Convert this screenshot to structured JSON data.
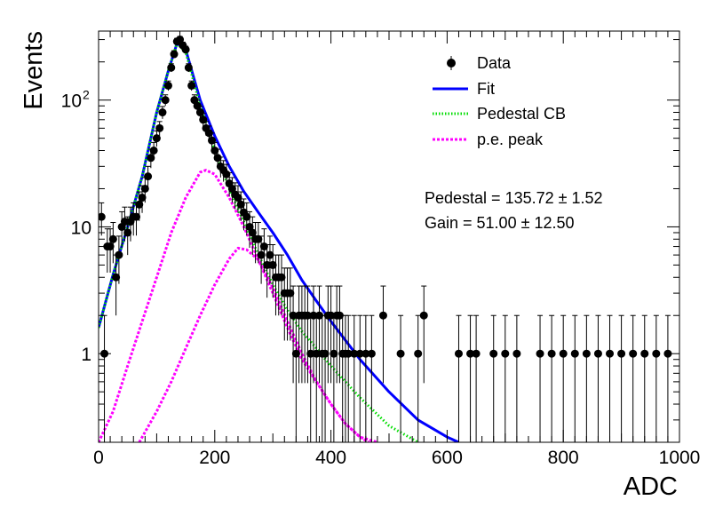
{
  "chart_data": {
    "type": "scatter",
    "xlabel": "ADC",
    "ylabel": "Events",
    "xlim": [
      0,
      1000
    ],
    "ylim": [
      0.2,
      350
    ],
    "yscale": "log",
    "x_ticks": [
      "0",
      "200",
      "400",
      "600",
      "800",
      "1000"
    ],
    "y_ticks": [
      {
        "value": 1,
        "label": "1"
      },
      {
        "value": 10,
        "label": "10"
      },
      {
        "value": 100,
        "label": "10",
        "exp": "2"
      }
    ],
    "legend": {
      "placement": "top-right",
      "entries": [
        {
          "label": "Data",
          "style": "marker",
          "color": "#000000"
        },
        {
          "label": "Fit",
          "style": "solid",
          "color": "#0000ff"
        },
        {
          "label": "Pedestal CB",
          "style": "dotted",
          "color": "#00dd00"
        },
        {
          "label": "p.e. peak",
          "style": "dashed",
          "color": "#ff00ff"
        }
      ]
    },
    "annotations": [
      {
        "text": "Pedestal = 135.72 ± 1.52"
      },
      {
        "text": "Gain = 51.00 ± 12.50"
      }
    ],
    "series": [
      {
        "name": "Data",
        "kind": "points",
        "color": "#000000",
        "x": [
          5,
          10,
          15,
          20,
          25,
          30,
          35,
          40,
          45,
          50,
          55,
          60,
          65,
          70,
          75,
          80,
          85,
          90,
          95,
          100,
          105,
          110,
          115,
          120,
          125,
          130,
          135,
          140,
          145,
          150,
          155,
          160,
          165,
          170,
          175,
          180,
          185,
          190,
          195,
          200,
          205,
          210,
          215,
          220,
          225,
          230,
          235,
          240,
          245,
          250,
          255,
          260,
          265,
          270,
          275,
          280,
          285,
          290,
          295,
          300,
          305,
          310,
          315,
          320,
          325,
          330,
          335,
          340,
          345,
          350,
          355,
          360,
          365,
          370,
          375,
          380,
          385,
          390,
          395,
          400,
          405,
          410,
          415,
          420,
          425,
          430,
          440,
          450,
          460,
          470,
          490,
          520,
          550,
          560,
          620,
          640,
          650,
          680,
          700,
          720,
          760,
          780,
          800,
          820,
          840,
          860,
          880,
          900,
          920,
          940,
          960,
          980
        ],
        "y": [
          12,
          1,
          7,
          7,
          8,
          4,
          6,
          10,
          11,
          9,
          11,
          12,
          12,
          15,
          17,
          20,
          25,
          35,
          40,
          50,
          60,
          80,
          100,
          130,
          180,
          230,
          290,
          300,
          270,
          250,
          180,
          130,
          100,
          90,
          80,
          70,
          60,
          55,
          48,
          40,
          35,
          30,
          28,
          26,
          22,
          20,
          18,
          17,
          15,
          13,
          12,
          10,
          9,
          8,
          8,
          6,
          7,
          5,
          6,
          5,
          4,
          4,
          4,
          3,
          3,
          3,
          2,
          1,
          2,
          2,
          2,
          2,
          1,
          2,
          1,
          2,
          1,
          1,
          2,
          2,
          1,
          2,
          2,
          1,
          1,
          1,
          1,
          1,
          1,
          1,
          2,
          1,
          1,
          2,
          1,
          1,
          1,
          1,
          1,
          1,
          1,
          1,
          1,
          1,
          1,
          1,
          1,
          1,
          1,
          1,
          1,
          1
        ]
      },
      {
        "name": "Fit",
        "kind": "line",
        "color": "#0000ff",
        "x": [
          0,
          25,
          50,
          75,
          100,
          120,
          135,
          150,
          175,
          200,
          225,
          250,
          275,
          300,
          325,
          350,
          375,
          400,
          450,
          500,
          550,
          600,
          620
        ],
        "y": [
          1.6,
          4.2,
          10,
          25,
          80,
          170,
          280,
          250,
          100,
          52,
          30,
          19,
          13,
          9,
          6,
          3.8,
          2.6,
          1.8,
          0.9,
          0.5,
          0.3,
          0.22,
          0.2
        ]
      },
      {
        "name": "Pedestal CB",
        "kind": "line",
        "color": "#00dd00",
        "x": [
          0,
          25,
          50,
          75,
          100,
          120,
          135,
          150,
          175,
          200,
          225,
          250,
          275,
          300,
          325,
          350,
          375,
          400,
          450,
          500,
          550
        ],
        "y": [
          1.6,
          4.2,
          10,
          25,
          80,
          170,
          280,
          240,
          90,
          40,
          20,
          11,
          6,
          3.5,
          2.2,
          1.5,
          1.1,
          0.8,
          0.45,
          0.27,
          0.2
        ]
      },
      {
        "name": "p.e. peak",
        "kind": "line",
        "color": "#ff00ff",
        "x": [
          0,
          25,
          50,
          75,
          100,
          125,
          150,
          175,
          185,
          200,
          225,
          250,
          275,
          300,
          325,
          350,
          375,
          400,
          425,
          450,
          480
        ],
        "y": [
          0.2,
          0.35,
          0.8,
          1.8,
          4,
          9,
          17,
          27,
          28,
          26,
          17,
          10,
          5.5,
          3,
          1.6,
          0.9,
          0.6,
          0.4,
          0.28,
          0.22,
          0.2
        ]
      },
      {
        "name": "p.e. peak (2 p.e.)",
        "kind": "line",
        "color": "#ff00ff",
        "x": [
          70,
          100,
          125,
          150,
          175,
          200,
          225,
          240,
          255,
          275,
          300,
          325,
          350,
          375,
          400,
          425,
          450,
          465
        ],
        "y": [
          0.2,
          0.35,
          0.6,
          1.1,
          2,
          3.5,
          5.6,
          6.8,
          6.6,
          5.5,
          3.3,
          1.8,
          1,
          0.6,
          0.4,
          0.28,
          0.22,
          0.2
        ]
      }
    ]
  }
}
